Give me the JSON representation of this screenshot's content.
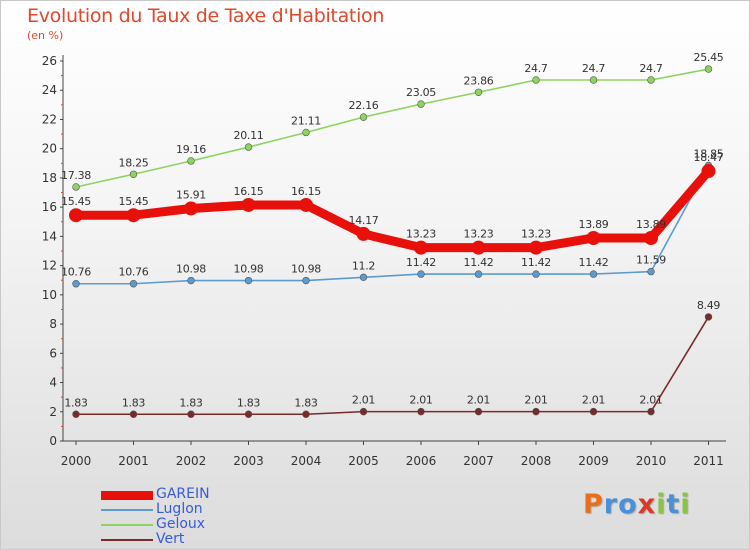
{
  "title": "Evolution du Taux de Taxe d'Habitation",
  "unit": "(en %)",
  "brand": {
    "letters": [
      "P",
      "r",
      "o",
      "x",
      "i",
      "t",
      "i"
    ],
    "colors": [
      "#e8701a",
      "#4a90d9",
      "#4a90d9",
      "#d83a2a",
      "#8bc34a",
      "#4a90d9",
      "#8bc34a"
    ]
  },
  "chart_data": {
    "type": "line",
    "title": "Evolution du Taux de Taxe d'Habitation",
    "ylabel": "(en %)",
    "xlabel": "",
    "x": [
      "2000",
      "2001",
      "2002",
      "2003",
      "2004",
      "2005",
      "2006",
      "2007",
      "2008",
      "2009",
      "2010",
      "2011"
    ],
    "ylim": [
      0,
      26
    ],
    "yticks": [
      "0",
      "2",
      "4",
      "6",
      "8",
      "10",
      "12",
      "14",
      "16",
      "18",
      "20",
      "22",
      "24",
      "26"
    ],
    "grid": false,
    "legend_position": "bottom-left",
    "series": [
      {
        "name": "GAREIN",
        "color": "#e8100a",
        "values": [
          15.45,
          15.45,
          15.91,
          16.15,
          16.15,
          14.17,
          13.23,
          13.23,
          13.23,
          13.89,
          13.89,
          18.47
        ],
        "labels": [
          "15.45",
          "15.45",
          "15.91",
          "16.15",
          "16.15",
          "14.17",
          "13.23",
          "13.23",
          "13.23",
          "13.89",
          "13.89",
          "18.47"
        ]
      },
      {
        "name": "Luglon",
        "color": "#5b9bd0",
        "values": [
          10.76,
          10.76,
          10.98,
          10.98,
          10.98,
          11.2,
          11.42,
          11.42,
          11.42,
          11.42,
          11.59,
          18.85
        ],
        "labels": [
          "10.76",
          "10.76",
          "10.98",
          "10.98",
          "10.98",
          "11.2",
          "11.42",
          "11.42",
          "11.42",
          "11.42",
          "11.59",
          "18.85"
        ]
      },
      {
        "name": "Geloux",
        "color": "#8dd35f",
        "values": [
          17.38,
          18.25,
          19.16,
          20.11,
          21.11,
          22.16,
          23.05,
          23.86,
          24.7,
          24.7,
          24.7,
          25.45
        ],
        "labels": [
          "17.38",
          "18.25",
          "19.16",
          "20.11",
          "21.11",
          "22.16",
          "23.05",
          "23.86",
          "24.7",
          "24.7",
          "24.7",
          "25.45"
        ]
      },
      {
        "name": "Vert",
        "color": "#7a2a2a",
        "values": [
          1.83,
          1.83,
          1.83,
          1.83,
          1.83,
          2.01,
          2.01,
          2.01,
          2.01,
          2.01,
          2.01,
          8.49
        ],
        "labels": [
          "1.83",
          "1.83",
          "1.83",
          "1.83",
          "1.83",
          "2.01",
          "2.01",
          "2.01",
          "2.01",
          "2.01",
          "2.01",
          "8.49"
        ]
      }
    ]
  },
  "legend": {
    "items": [
      {
        "label": "GAREIN",
        "color": "#e8100a",
        "thickness": 9
      },
      {
        "label": "Luglon",
        "color": "#5b9bd0",
        "thickness": 2
      },
      {
        "label": "Geloux",
        "color": "#8dd35f",
        "thickness": 2
      },
      {
        "label": "Vert",
        "color": "#7a2a2a",
        "thickness": 2
      }
    ]
  }
}
